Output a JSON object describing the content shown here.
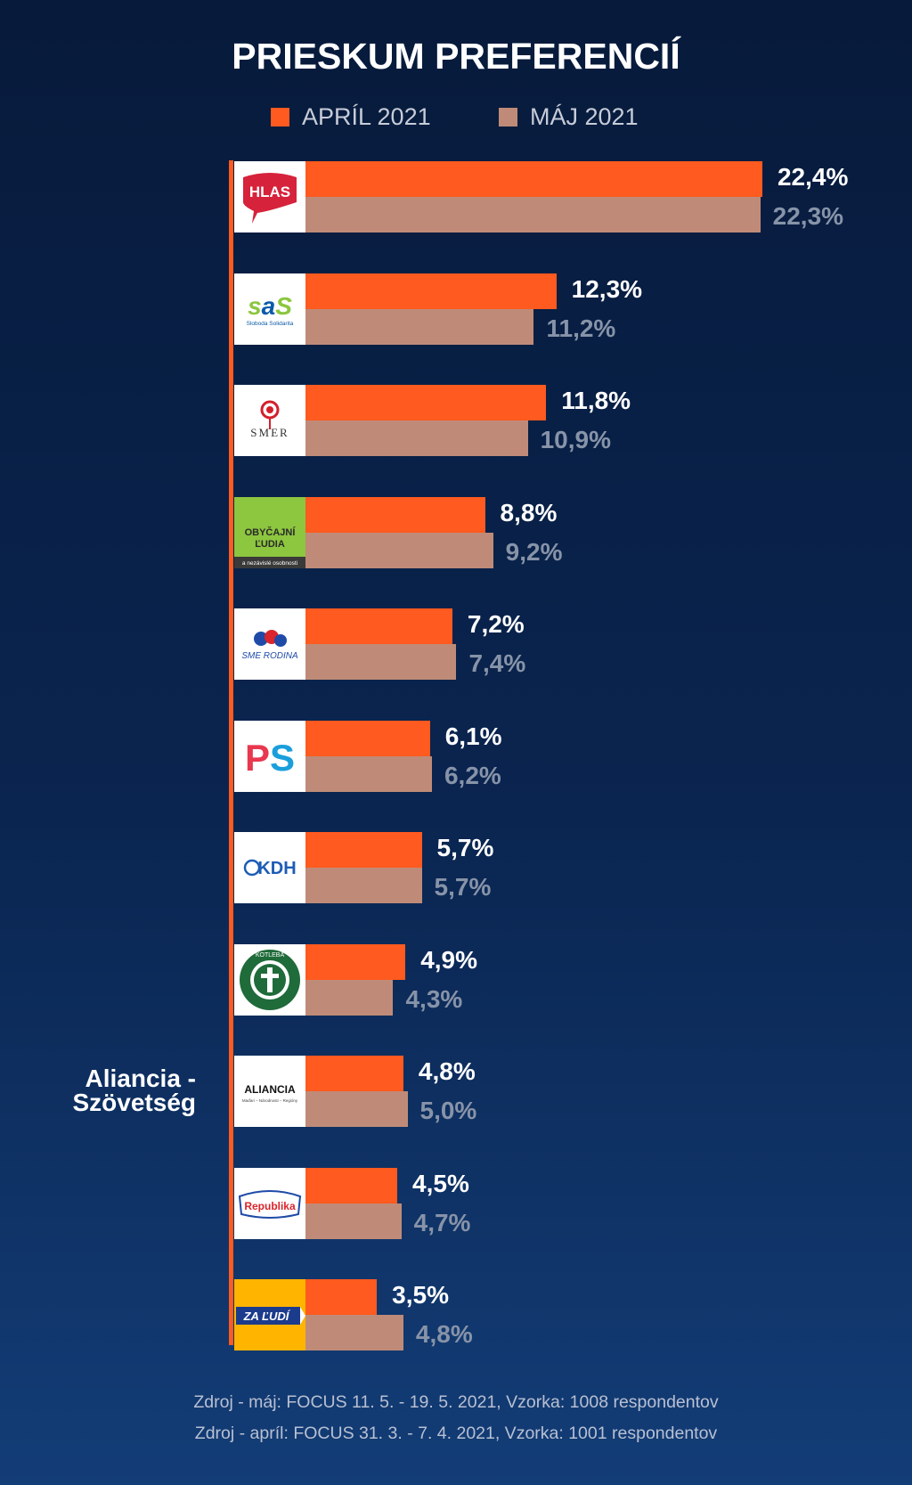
{
  "title": "PRIESKUM PREFERENCIÍ",
  "colors": {
    "april": "#ff5a1f",
    "maj": "#bf8b78",
    "background": "#0a2550"
  },
  "legend": [
    {
      "label": "APRÍL 2021",
      "color": "#ff5a1f"
    },
    {
      "label": "MÁJ 2021",
      "color": "#bf8b78"
    }
  ],
  "chart_data": {
    "type": "bar",
    "orientation": "horizontal",
    "categories": [
      "Hlas-SD",
      "SaS",
      "Smer-SD",
      "OĽaNO",
      "Sme Rodina",
      "PS",
      "KDH",
      "ĽSNS",
      "Aliancia - Szövetség",
      "Republika",
      "Za ľudí"
    ],
    "series": [
      {
        "name": "APRÍL 2021",
        "values": [
          22.4,
          12.3,
          11.8,
          8.8,
          7.2,
          6.1,
          5.7,
          4.9,
          4.8,
          4.5,
          3.5
        ],
        "labels": [
          "22,4%",
          "12,3%",
          "11,8%",
          "8,8%",
          "7,2%",
          "6,1%",
          "5,7%",
          "4,9%",
          "4,8%",
          "4,5%",
          "3,5%"
        ]
      },
      {
        "name": "MÁJ 2021",
        "values": [
          22.3,
          11.2,
          10.9,
          9.2,
          7.4,
          6.2,
          5.7,
          4.3,
          5.0,
          4.7,
          4.8
        ],
        "labels": [
          "22,3%",
          "11,2%",
          "10,9%",
          "9,2%",
          "7,4%",
          "6,2%",
          "5,7%",
          "4,3%",
          "5,0%",
          "4,7%",
          "4,8%"
        ]
      }
    ],
    "party_logos": [
      {
        "name": "hlas-logo",
        "text": "HLAS"
      },
      {
        "name": "sas-logo",
        "text": "SaS",
        "subtext": "Sloboda Solidarita"
      },
      {
        "name": "smer-logo",
        "text": "SMER"
      },
      {
        "name": "olano-logo",
        "text": "OBYČAJNÍ ĽUDIA",
        "subtext": "a nezávislé osobnosti"
      },
      {
        "name": "sme-rodina-logo",
        "text": "SME RODINA"
      },
      {
        "name": "ps-logo",
        "text": "PS"
      },
      {
        "name": "kdh-logo",
        "text": "KDH"
      },
      {
        "name": "lsns-logo",
        "text": "KOTLEBA"
      },
      {
        "name": "aliancia-logo",
        "text": "ALIANCIA",
        "subtext": "Maďari – Národnosti – Regióny"
      },
      {
        "name": "republika-logo",
        "text": "Republika"
      },
      {
        "name": "za-ludi-logo",
        "text": "ZA ĽUDÍ"
      }
    ],
    "xlim": [
      0,
      25
    ],
    "grid": false,
    "legend_position": "top-center"
  },
  "sources": [
    "Zdroj - máj: FOCUS 11. 5. - 19. 5. 2021, Vzorka: 1008 respondentov",
    "Zdroj - apríl: FOCUS 31. 3. - 7. 4. 2021, Vzorka: 1001 respondentov"
  ]
}
